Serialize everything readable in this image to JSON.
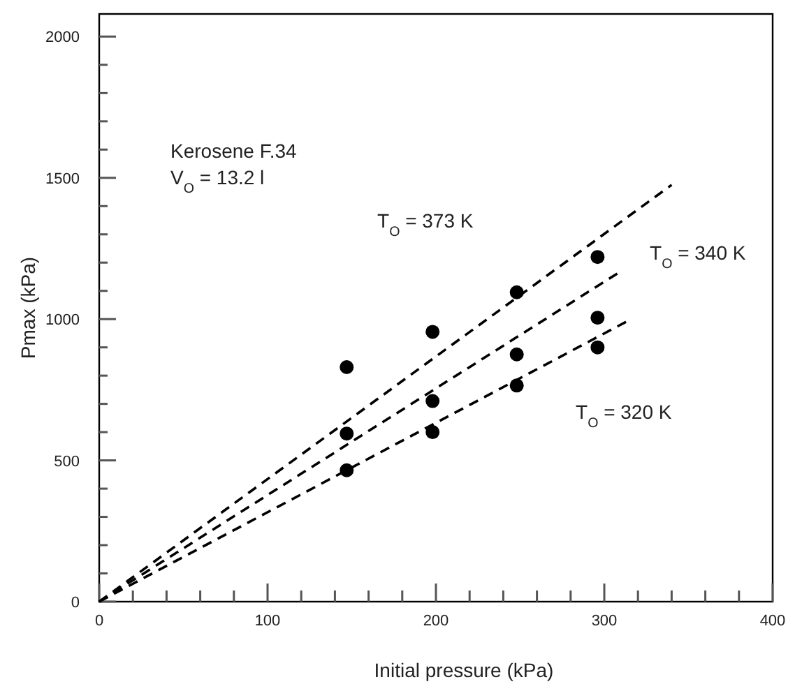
{
  "chart_data": {
    "type": "scatter",
    "xlabel": "Initial pressure (kPa)",
    "ylabel": "Pmax (kPa)",
    "xlim": [
      0,
      400
    ],
    "ylim": [
      0,
      2080
    ],
    "xticks": [
      0,
      {
        "value": 20,
        "label": null
      },
      {
        "value": 40,
        "label": null
      },
      {
        "value": 60,
        "label": null
      },
      {
        "value": 80,
        "label": null
      },
      100,
      {
        "value": 120,
        "label": null
      },
      {
        "value": 140,
        "label": null
      },
      {
        "value": 160,
        "label": null
      },
      {
        "value": 180,
        "label": null
      },
      200,
      {
        "value": 220,
        "label": null
      },
      {
        "value": 240,
        "label": null
      },
      {
        "value": 260,
        "label": null
      },
      {
        "value": 280,
        "label": null
      },
      300,
      {
        "value": 320,
        "label": null
      },
      {
        "value": 340,
        "label": null
      },
      {
        "value": 360,
        "label": null
      },
      {
        "value": 380,
        "label": null
      },
      400
    ],
    "yticks": [
      0,
      {
        "value": 100,
        "label": null
      },
      {
        "value": 200,
        "label": null
      },
      {
        "value": 300,
        "label": null
      },
      {
        "value": 400,
        "label": null
      },
      500,
      {
        "value": 600,
        "label": null
      },
      {
        "value": 700,
        "label": null
      },
      {
        "value": 800,
        "label": null
      },
      {
        "value": 900,
        "label": null
      },
      1000,
      {
        "value": 1100,
        "label": null
      },
      {
        "value": 1200,
        "label": null
      },
      {
        "value": 1300,
        "label": null
      },
      {
        "value": 1400,
        "label": null
      },
      1500,
      {
        "value": 1600,
        "label": null
      },
      {
        "value": 1700,
        "label": null
      },
      {
        "value": 1800,
        "label": null
      },
      {
        "value": 1900,
        "label": null
      },
      2000
    ],
    "grid": false,
    "marker": "circle",
    "series": [
      {
        "color": "#000000",
        "x": [
          147,
          198,
          248,
          296
        ],
        "values": [
          830,
          955,
          1095,
          1220
        ]
      },
      {
        "color": "#000000",
        "x": [
          147,
          198,
          248,
          296
        ],
        "values": [
          595,
          710,
          875,
          1005
        ]
      },
      {
        "color": "#000000",
        "x": [
          147,
          198,
          248,
          296
        ],
        "values": [
          465,
          600,
          765,
          900
        ]
      },
      {
        "type": "line",
        "color": "#000000",
        "line_style": "dashed",
        "marker": "none",
        "x": [
          0,
          340
        ],
        "values": [
          0,
          1475
        ]
      },
      {
        "type": "line",
        "color": "#000000",
        "line_style": "dashed",
        "marker": "none",
        "x": [
          0,
          310
        ],
        "values": [
          0,
          1170
        ]
      },
      {
        "type": "line",
        "color": "#000000",
        "line_style": "dashed",
        "marker": "none",
        "x": [
          0,
          316
        ],
        "values": [
          0,
          1000
        ]
      }
    ],
    "annotations": [
      "Kerosene F.34",
      "V$_{O}$ = 13.2 l",
      "T$_{O}$ = 373 K",
      "T$_{O}$ = 340 K",
      "T$_{O}$ = 320 K"
    ]
  }
}
